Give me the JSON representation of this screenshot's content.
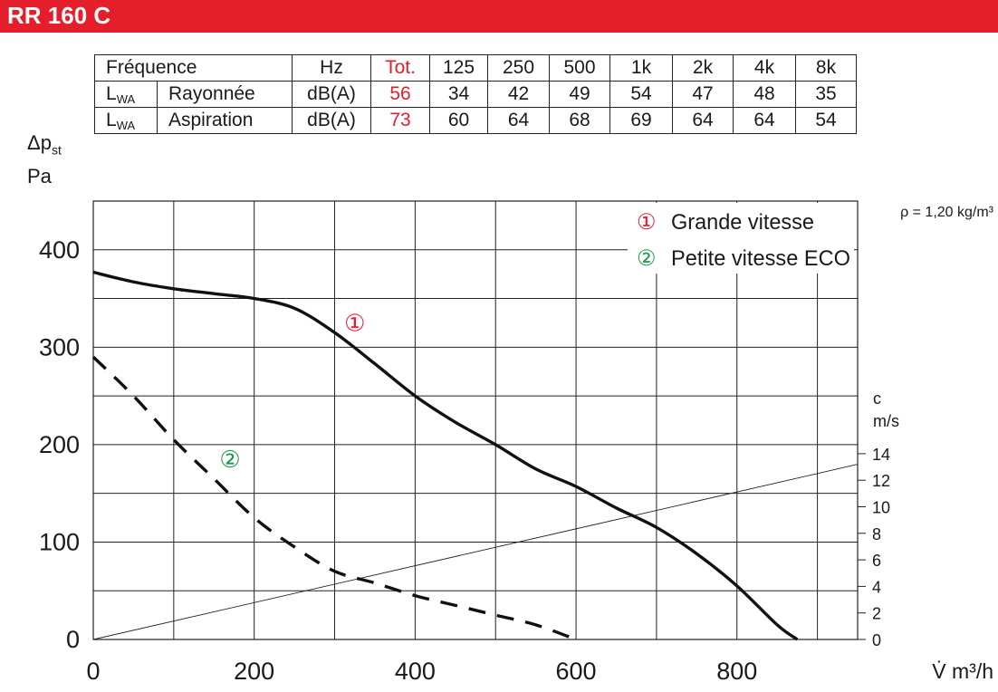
{
  "header": {
    "title": "RR 160 C"
  },
  "sound_table": {
    "header": [
      "Fréquence",
      "Hz",
      "Tot.",
      "125",
      "250",
      "500",
      "1k",
      "2k",
      "4k",
      "8k"
    ],
    "rows": [
      {
        "quantity": "L",
        "quantity_sub": "WA",
        "label": "Rayonnée",
        "unit": "dB(A)",
        "tot": "56",
        "values": [
          "34",
          "42",
          "49",
          "54",
          "47",
          "48",
          "35"
        ]
      },
      {
        "quantity": "L",
        "quantity_sub": "WA",
        "label": "Aspiration",
        "unit": "dB(A)",
        "tot": "73",
        "values": [
          "60",
          "64",
          "68",
          "69",
          "64",
          "64",
          "54"
        ]
      }
    ]
  },
  "chart_data": {
    "type": "line",
    "ylabel": {
      "symbol": "Δp",
      "sub": "st",
      "unit": "Pa"
    },
    "xlabel": "V̇ m³/h",
    "xlim": [
      0,
      950
    ],
    "ylim": [
      0,
      450
    ],
    "x_ticks": [
      "0",
      "200",
      "400",
      "600",
      "800"
    ],
    "y_ticks": [
      "0",
      "100",
      "200",
      "300",
      "400"
    ],
    "grid": true,
    "density_note": "ρ = 1,20 kg/m³",
    "legend_position": "top-right",
    "legend": [
      {
        "marker": "①",
        "label": "Grande vitesse",
        "color": "#e41e2b"
      },
      {
        "marker": "②",
        "label": "Petite vitesse ECO",
        "color": "#1a9a4a"
      }
    ],
    "series": [
      {
        "name": "Grande vitesse",
        "marker": "①",
        "marker_color": "#e41e2b",
        "style": "solid",
        "label_at": [
          325,
          325
        ],
        "x": [
          0,
          50,
          100,
          150,
          200,
          250,
          300,
          350,
          400,
          450,
          500,
          550,
          600,
          650,
          700,
          750,
          800,
          850,
          875
        ],
        "y": [
          377,
          367,
          360,
          355,
          350,
          340,
          315,
          283,
          250,
          223,
          200,
          175,
          157,
          135,
          115,
          88,
          55,
          15,
          0
        ]
      },
      {
        "name": "Petite vitesse ECO",
        "marker": "②",
        "marker_color": "#1a9a4a",
        "style": "dashed",
        "label_at": [
          170,
          185
        ],
        "x": [
          0,
          50,
          100,
          150,
          200,
          250,
          300,
          350,
          400,
          450,
          500,
          550,
          600
        ],
        "y": [
          290,
          250,
          205,
          165,
          125,
          95,
          70,
          58,
          45,
          35,
          25,
          15,
          0
        ]
      }
    ],
    "velocity_axis": {
      "label": "c",
      "unit": "m/s",
      "ticks": [
        "0",
        "2",
        "4",
        "6",
        "8",
        "10",
        "12",
        "14"
      ],
      "line": {
        "x": [
          0,
          950
        ],
        "c": [
          0,
          13.2
        ]
      }
    }
  }
}
